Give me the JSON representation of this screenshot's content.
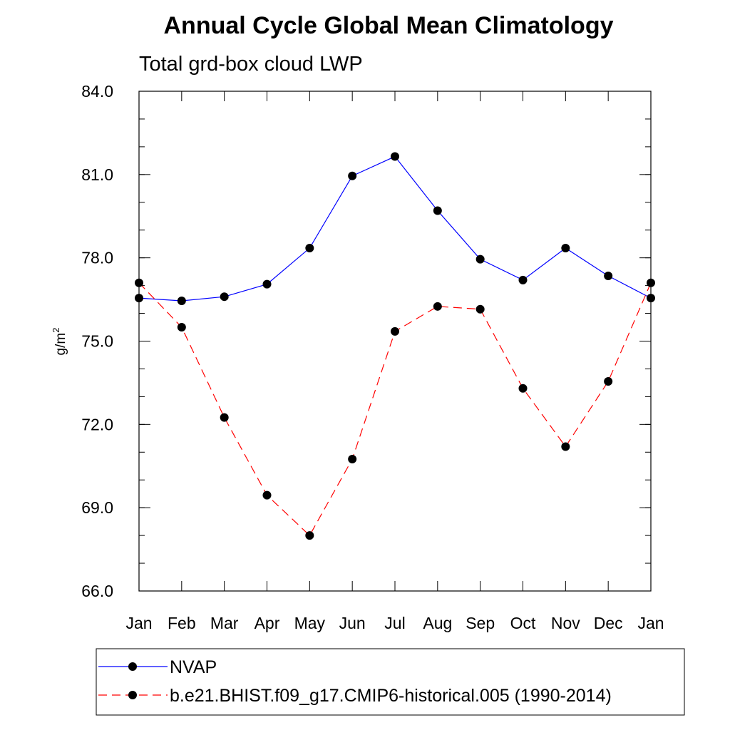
{
  "chart_data": {
    "type": "line",
    "title": "Annual Cycle Global Mean Climatology",
    "subtitle": "Total grd-box cloud LWP",
    "ylabel_base": "g/m",
    "ylabel_sup": "2",
    "categories": [
      "Jan",
      "Feb",
      "Mar",
      "Apr",
      "May",
      "Jun",
      "Jul",
      "Aug",
      "Sep",
      "Oct",
      "Nov",
      "Dec",
      "Jan"
    ],
    "ylim": [
      66.0,
      84.0
    ],
    "yticks_major": [
      "66.0",
      "69.0",
      "72.0",
      "75.0",
      "78.0",
      "81.0",
      "84.0"
    ],
    "y_minor_step": 1.0,
    "grid": false,
    "legend_position": "bottom",
    "series": [
      {
        "name": "NVAP",
        "color": "#0000ff",
        "dash": "solid",
        "values": [
          76.55,
          76.45,
          76.6,
          77.05,
          78.35,
          80.95,
          81.65,
          79.7,
          77.95,
          77.2,
          78.35,
          77.35,
          76.55
        ]
      },
      {
        "name": "b.e21.BHIST.f09_g17.CMIP6-historical.005 (1990-2014)",
        "color": "#ff0000",
        "dash": "dashed",
        "values": [
          77.1,
          75.5,
          72.25,
          69.45,
          68.0,
          70.75,
          75.35,
          76.25,
          76.15,
          73.3,
          71.2,
          73.55,
          77.1
        ]
      }
    ]
  }
}
